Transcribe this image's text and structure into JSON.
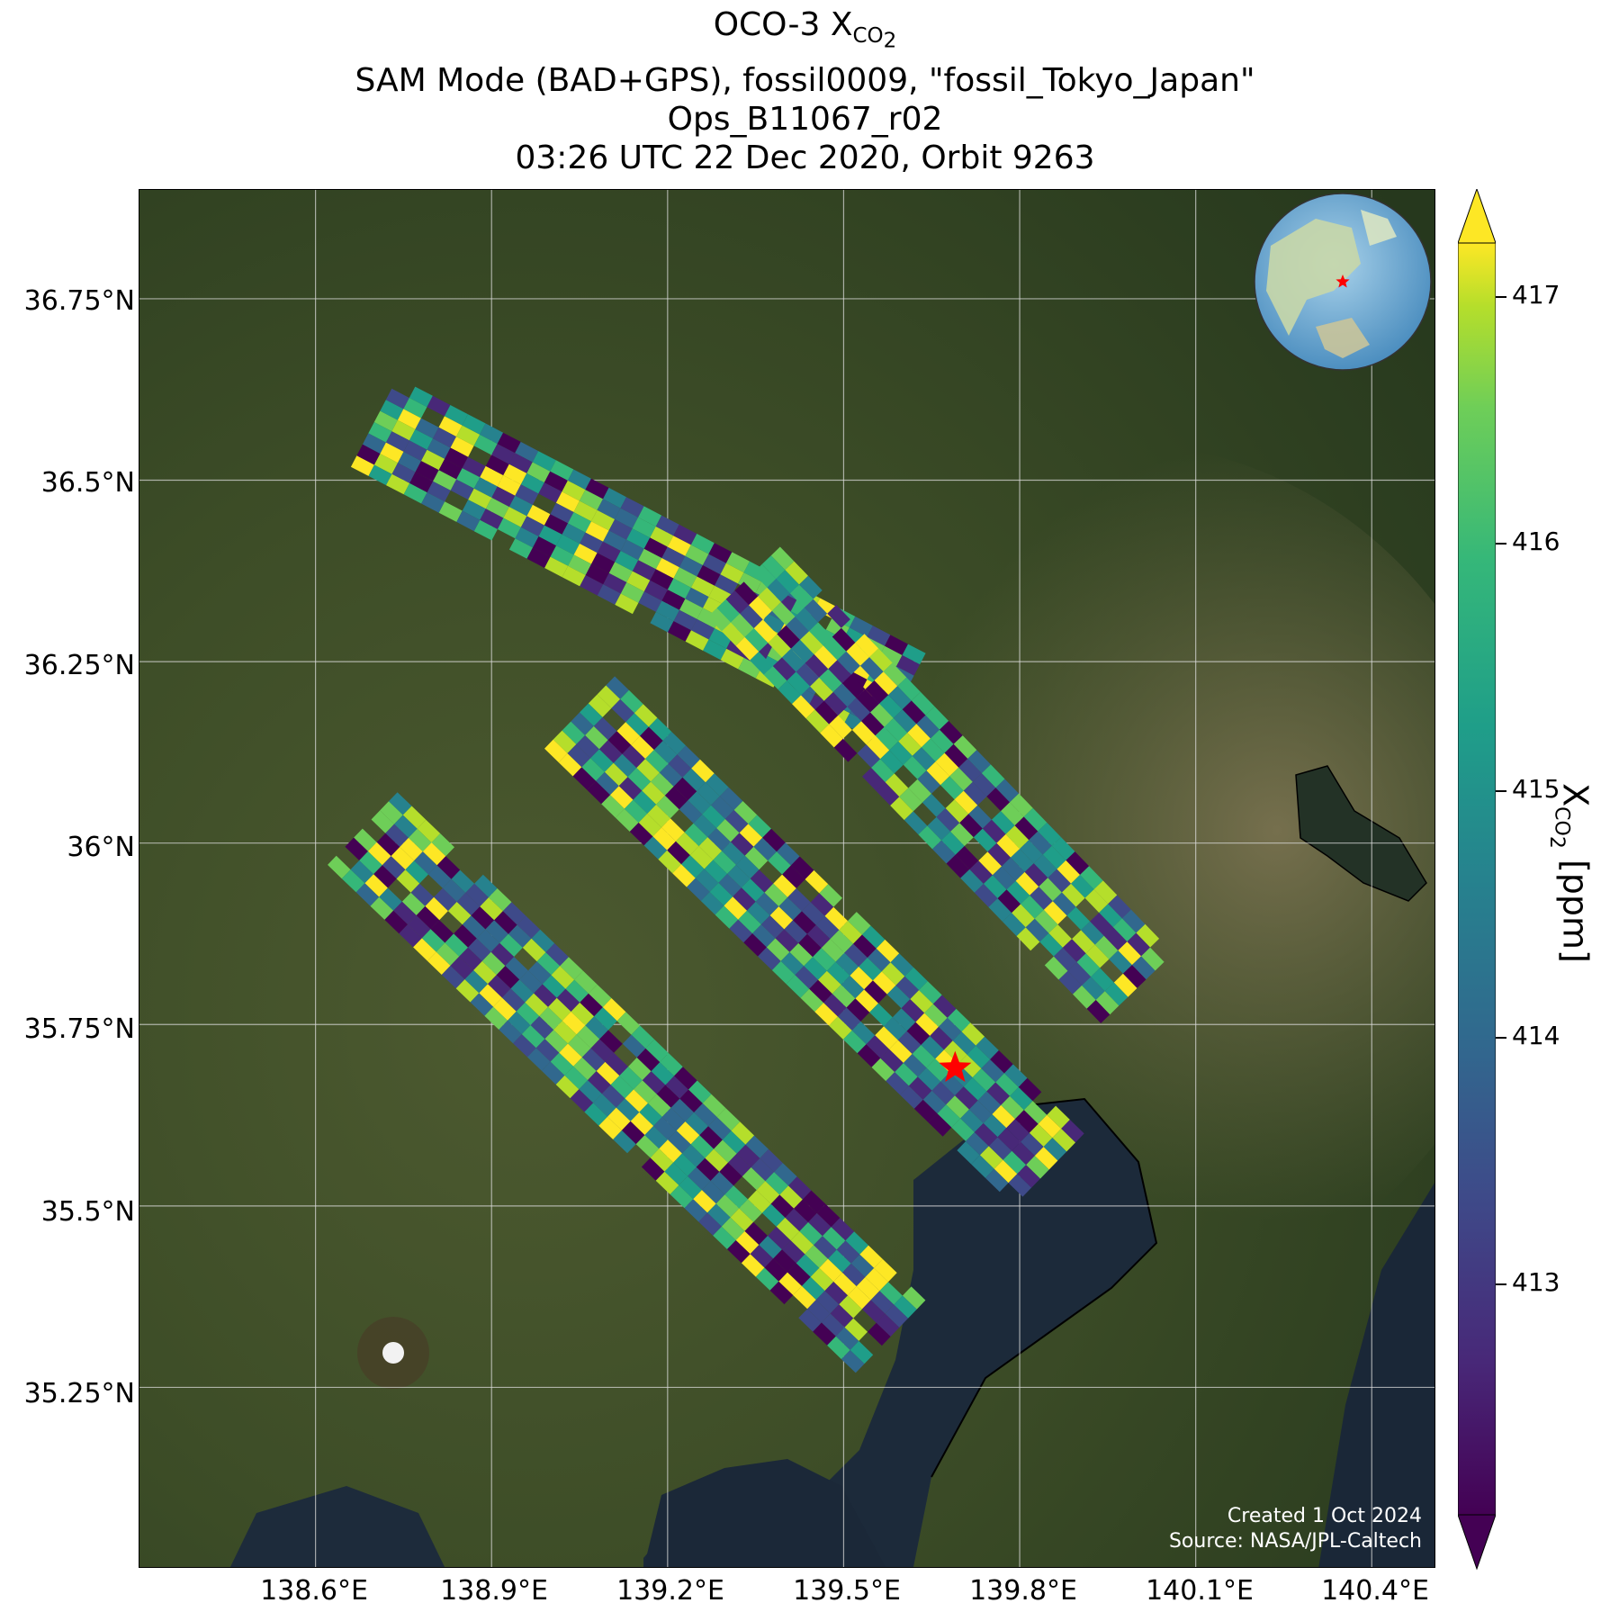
{
  "title": {
    "line1_prefix": "OCO-3 X",
    "line1_sub": "CO",
    "line1_sub2": "2",
    "line2": "SAM Mode (BAD+GPS), fossil0009, \"fossil_Tokyo_Japan\"",
    "line3": "Ops_B11067_r02",
    "line4": "03:26 UTC 22 Dec 2020, Orbit 9263"
  },
  "map": {
    "lat_ticks": [
      "36.75°N",
      "36.5°N",
      "36.25°N",
      "36°N",
      "35.75°N",
      "35.5°N",
      "35.25°N"
    ],
    "lon_ticks": [
      "138.6°E",
      "138.9°E",
      "139.2°E",
      "139.5°E",
      "139.8°E",
      "140.1°E",
      "140.4°E"
    ],
    "lat_values": [
      36.75,
      36.5,
      36.25,
      36.0,
      35.75,
      35.5,
      35.25
    ],
    "lon_values": [
      138.6,
      138.9,
      139.2,
      139.5,
      139.8,
      140.1,
      140.4
    ],
    "extent": {
      "lon_min": 138.3,
      "lon_max": 140.51,
      "lat_min": 35.0,
      "lat_max": 36.9
    },
    "target_marker": {
      "name": "fossil_Tokyo_Japan",
      "lon": 139.69,
      "lat": 35.69,
      "color": "#ff0000"
    },
    "gridlines": true,
    "inset_globe": "top-right"
  },
  "credits": {
    "created": "Created 1 Oct 2024",
    "source": "Source: NASA/JPL-Caltech"
  },
  "colorbar": {
    "label_prefix": "X",
    "label_sub": "CO",
    "label_sub2": "2",
    "label_suffix": " [ppm]",
    "ticks": [
      "413",
      "414",
      "415",
      "416",
      "417"
    ],
    "tick_values": [
      413,
      414,
      415,
      416,
      417
    ],
    "vmin": 412.2,
    "vmax": 417.2,
    "colormap": "viridis",
    "extend": "both"
  },
  "chart_data": {
    "type": "heatmap",
    "colormap": "viridis",
    "variable": "XCO2",
    "units": "ppm",
    "range": [
      412.2,
      417.2
    ],
    "swaths": [
      {
        "lon_start": 138.7,
        "lat_start": 36.58,
        "lon_end": 139.6,
        "lat_end": 36.2
      },
      {
        "lon_start": 139.33,
        "lat_start": 36.36,
        "lon_end": 140.0,
        "lat_end": 35.8
      },
      {
        "lon_start": 138.68,
        "lat_start": 36.02,
        "lon_end": 139.58,
        "lat_end": 35.32
      },
      {
        "lon_start": 139.05,
        "lat_start": 36.18,
        "lon_end": 139.85,
        "lat_end": 35.55
      }
    ]
  }
}
